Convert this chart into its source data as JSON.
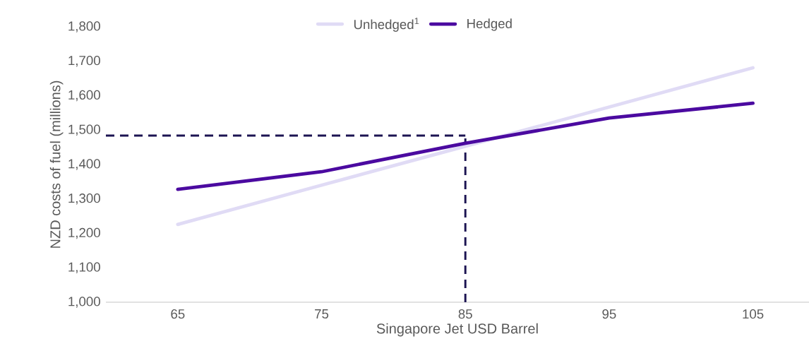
{
  "chart_data": {
    "type": "line",
    "xlabel": "Singapore Jet USD Barrel",
    "ylabel": "NZD costs of fuel (millions)",
    "categories": [
      "65",
      "75",
      "85",
      "95",
      "105"
    ],
    "series": [
      {
        "name": "Unhedged$^{1}$",
        "color": "#e0dbf5",
        "values": [
          1226,
          1340,
          1453,
          1567,
          1681
        ]
      },
      {
        "name": "Hedged",
        "color": "#4b0aa0",
        "values": [
          1328,
          1379,
          1462,
          1535,
          1578
        ]
      }
    ],
    "ylim": [
      1000,
      1800
    ],
    "yticks": [
      {
        "value": 1000,
        "label": "1,000"
      },
      {
        "value": 1100,
        "label": "1,100"
      },
      {
        "value": 1200,
        "label": "1,200"
      },
      {
        "value": 1300,
        "label": "1,300"
      },
      {
        "value": 1400,
        "label": "1,400"
      },
      {
        "value": 1500,
        "label": "1,500"
      },
      {
        "value": 1600,
        "label": "1,600"
      },
      {
        "value": 1700,
        "label": "1,700"
      },
      {
        "value": 1800,
        "label": "1,800"
      }
    ],
    "ref_lines": [
      {
        "axis": "y",
        "value": 1484,
        "color": "#1c1452",
        "line_style": "dashed"
      },
      {
        "axis": "x",
        "value": "85",
        "color": "#1c1452",
        "line_style": "dashed"
      }
    ],
    "legend": "top",
    "marker": "none",
    "line_style": "solid"
  }
}
